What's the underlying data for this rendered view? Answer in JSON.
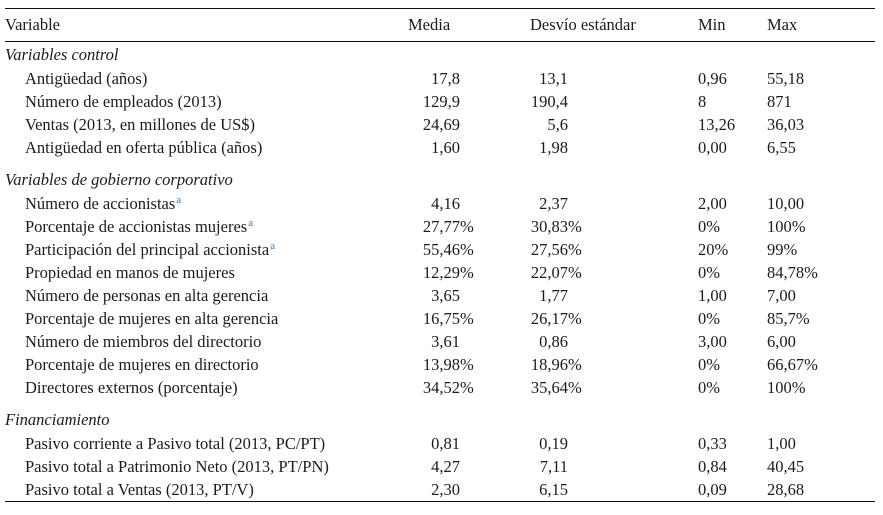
{
  "page": {
    "background": "#ffffff",
    "text_color": "#1b1b1b",
    "rule_color": "#101010"
  },
  "table": {
    "headers": {
      "variable": "Variable",
      "media": "Media",
      "sd": "Desvío estándar",
      "min": "Min",
      "max": "Max"
    },
    "footnote_marker": "a",
    "footnote_marker_color": "#3E78B8",
    "sections": [
      {
        "title": "Variables control",
        "rows": [
          {
            "label": "Antigüedad (años)",
            "media": "17,8",
            "sd": "13,1",
            "min": "0,96",
            "max": "55,18"
          },
          {
            "label": "Número de empleados (2013)",
            "media": "129,9",
            "sd": "190,4",
            "min": "8",
            "max": "871"
          },
          {
            "label": "Ventas (2013, en millones de US$)",
            "media": "24,69",
            "sd": "5,6",
            "min": "13,26",
            "max": "36,03"
          },
          {
            "label": "Antigüedad en oferta pública (años)",
            "media": "1,60",
            "sd": "1,98",
            "min": "0,00",
            "max": "6,55"
          }
        ]
      },
      {
        "title": "Variables de gobierno corporativo",
        "rows": [
          {
            "label": "Número de accionistas",
            "footnote": true,
            "media": "4,16",
            "sd": "2,37",
            "min": "2,00",
            "max": "10,00"
          },
          {
            "label": "Porcentaje de accionistas mujeres",
            "footnote": true,
            "media": "27,77%",
            "sd": "30,83%",
            "min": "0%",
            "max": "100%"
          },
          {
            "label": "Participación del principal accionista",
            "footnote": true,
            "media": "55,46%",
            "sd": "27,56%",
            "min": "20%",
            "max": "99%"
          },
          {
            "label": "Propiedad en manos de mujeres",
            "media": "12,29%",
            "sd": "22,07%",
            "min": "0%",
            "max": "84,78%"
          },
          {
            "label": "Número de personas en alta gerencia",
            "media": "3,65",
            "sd": "1,77",
            "min": "1,00",
            "max": "7,00"
          },
          {
            "label": "Porcentaje de mujeres en alta gerencia",
            "media": "16,75%",
            "sd": "26,17%",
            "min": "0%",
            "max": "85,7%"
          },
          {
            "label": "Número de miembros del directorio",
            "media": "3,61",
            "sd": "0,86",
            "min": "3,00",
            "max": "6,00"
          },
          {
            "label": "Porcentaje de mujeres en directorio",
            "media": "13,98%",
            "sd": "18,96%",
            "min": "0%",
            "max": "66,67%"
          },
          {
            "label": "Directores externos (porcentaje)",
            "media": "34,52%",
            "sd": "35,64%",
            "min": "0%",
            "max": "100%"
          }
        ]
      },
      {
        "title": "Financiamiento",
        "rows": [
          {
            "label": "Pasivo corriente a Pasivo total (2013, PC/PT)",
            "media": "0,81",
            "sd": "0,19",
            "min": "0,33",
            "max": "1,00"
          },
          {
            "label": "Pasivo total a Patrimonio Neto (2013, PT/PN)",
            "media": "4,27",
            "sd": "7,11",
            "min": "0,84",
            "max": "40,45"
          },
          {
            "label": "Pasivo total a Ventas (2013, PT/V)",
            "media": "2,30",
            "sd": "6,15",
            "min": "0,09",
            "max": "28,68"
          }
        ]
      }
    ]
  }
}
